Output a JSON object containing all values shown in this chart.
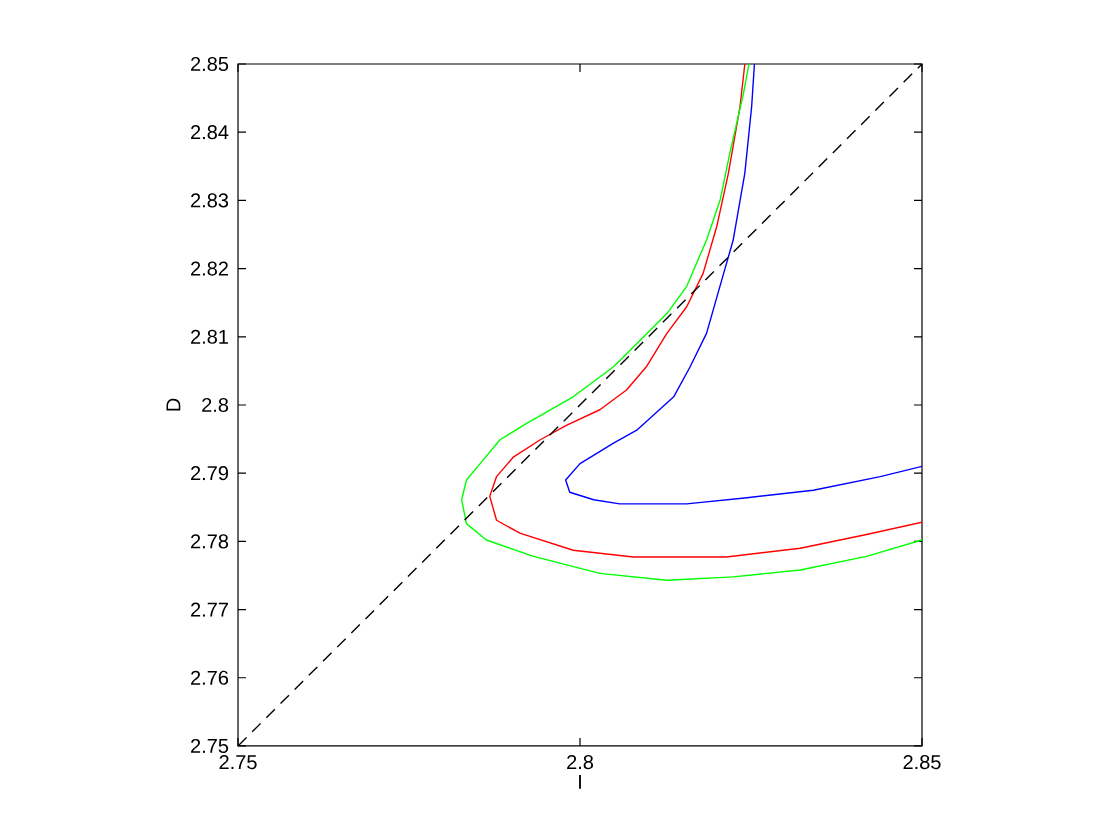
{
  "chart_data": {
    "type": "line",
    "xlabel": "I",
    "ylabel": "D",
    "xlim": [
      2.75,
      2.85
    ],
    "ylim": [
      2.75,
      2.85
    ],
    "xticks": [
      2.75,
      2.8,
      2.85
    ],
    "yticks": [
      2.75,
      2.76,
      2.77,
      2.78,
      2.79,
      2.8,
      2.81,
      2.82,
      2.83,
      2.84,
      2.85
    ],
    "series": [
      {
        "color": "#0000ff",
        "x": [
          2.8255,
          2.8251,
          2.8241,
          2.8224,
          2.821,
          2.8185,
          2.8161,
          2.8137,
          2.8083,
          2.8049,
          2.8,
          2.7979,
          2.7985,
          2.802,
          2.8058,
          2.8156,
          2.8244,
          2.8341,
          2.8439,
          2.85
        ],
        "values": [
          2.85,
          2.8438,
          2.834,
          2.8242,
          2.8193,
          2.8105,
          2.8056,
          2.8012,
          2.7963,
          2.7944,
          2.7914,
          2.789,
          2.7872,
          2.7861,
          2.7855,
          2.7855,
          2.7864,
          2.7875,
          2.7895,
          2.791
        ]
      },
      {
        "color": "#ff0000",
        "x": [
          2.8241,
          2.8234,
          2.8217,
          2.82,
          2.818,
          2.8156,
          2.8127,
          2.8097,
          2.8068,
          2.8029,
          2.798,
          2.7942,
          2.7903,
          2.7878,
          2.7868,
          2.7878,
          2.7912,
          2.799,
          2.8078,
          2.8214,
          2.8322,
          2.8419,
          2.85
        ],
        "values": [
          2.85,
          2.8438,
          2.834,
          2.8262,
          2.8193,
          2.8144,
          2.8105,
          2.8056,
          2.8022,
          2.7993,
          2.797,
          2.7949,
          2.7924,
          2.7895,
          2.7866,
          2.7831,
          2.7812,
          2.7787,
          2.7777,
          2.7777,
          2.779,
          2.781,
          2.7828
        ]
      },
      {
        "color": "#00ff00",
        "x": [
          2.8247,
          2.8239,
          2.8219,
          2.8205,
          2.8185,
          2.8156,
          2.8127,
          2.8088,
          2.8049,
          2.799,
          2.7922,
          2.7883,
          2.7854,
          2.7834,
          2.7827,
          2.7834,
          2.7863,
          2.7932,
          2.8029,
          2.8127,
          2.8224,
          2.8322,
          2.8419,
          2.85
        ],
        "values": [
          2.85,
          2.8457,
          2.8369,
          2.8301,
          2.8242,
          2.8174,
          2.8134,
          2.8095,
          2.8056,
          2.8012,
          2.7973,
          2.7949,
          2.7914,
          2.789,
          2.7861,
          2.7826,
          2.7802,
          2.7778,
          2.7753,
          2.7743,
          2.7748,
          2.7758,
          2.7778,
          2.7802
        ]
      },
      {
        "color": "#000000",
        "line_style": "dashed",
        "x": [
          2.75,
          2.85
        ],
        "values": [
          2.75,
          2.85
        ]
      }
    ]
  }
}
